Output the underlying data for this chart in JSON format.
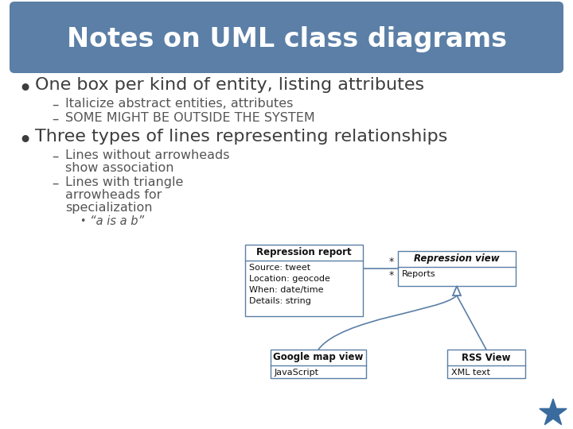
{
  "bg_color": "#ffffff",
  "title": "Notes on UML class diagrams",
  "title_bg": "#5b7fa6",
  "title_fg": "#ffffff",
  "bullet1": "One box per kind of entity, listing attributes",
  "sub1a": "Italicize abstract entities, attributes",
  "sub1b": "SOME MIGHT BE OUTSIDE THE SYSTEM",
  "bullet2": "Three types of lines representing relationships",
  "sub2a1": "Lines without arrowheads",
  "sub2a2": "show association",
  "sub2b1": "Lines with triangle",
  "sub2b2": "arrowheads for",
  "sub2b3": "specialization",
  "sub2b_sub": "“a is a b”",
  "box1_title": "Repression report",
  "box1_attrs": [
    "Source: tweet",
    "Location: geocode",
    "When: date/time",
    "Details: string"
  ],
  "box2_title": "Repression view",
  "box2_attrs": [
    "Reports"
  ],
  "box3_title": "Google map view",
  "box3_attrs": [
    "JavaScript"
  ],
  "box4_title": "RSS View",
  "box4_attrs": [
    "XML text"
  ],
  "uml_color": "#5b7fa6",
  "star_color": "#3a6b9e",
  "text_dark": "#3d3d3d",
  "text_sub": "#555555"
}
